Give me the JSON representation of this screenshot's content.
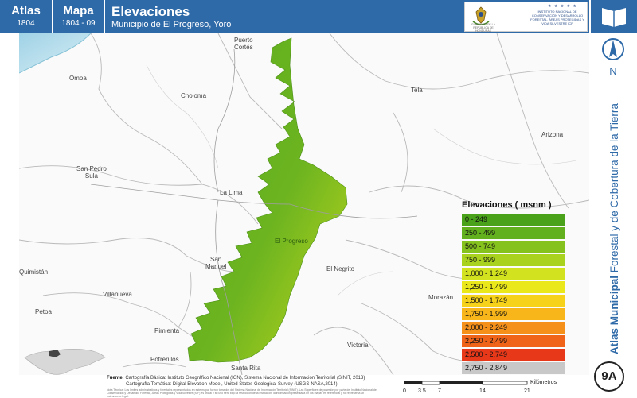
{
  "header": {
    "atlas_label": "Atlas",
    "atlas_code": "1804",
    "mapa_label": "Mapa",
    "mapa_code": "1804 - 09",
    "title": "Elevaciones",
    "subtitle": "Municipio de El Progreso, Yoro",
    "logo_gov_text": "GOBIERNO DE LA REPÚBLICA DE HONDURAS",
    "logo_inst_text": "INSTITUTO NACIONAL DE CONSERVACIÓN Y DESARROLLO FORESTAL, ÁREAS PROTEGIDAS Y VIDA SILVESTRE ICF",
    "logo_stars": "★ ★ ★ ★ ★"
  },
  "sidebar": {
    "north_label": "N",
    "vertical_bold": "Atlas Municipal",
    "vertical_rest": " Forestal y de Cobertura de la Tierra",
    "badge": "9A"
  },
  "places": [
    {
      "id": "puerto-cortes",
      "text": "Puerto\nCortés"
    },
    {
      "id": "omoa",
      "text": "Omoa"
    },
    {
      "id": "choloma",
      "text": "Choloma"
    },
    {
      "id": "tela",
      "text": "Tela"
    },
    {
      "id": "arizona",
      "text": "Arizona"
    },
    {
      "id": "san-pedro-sula",
      "text": "San Pedro\nSula"
    },
    {
      "id": "la-lima",
      "text": "La Lima"
    },
    {
      "id": "el-progreso",
      "text": "El Progreso"
    },
    {
      "id": "san-manuel",
      "text": "San\nManuel"
    },
    {
      "id": "el-negrito",
      "text": "El Negrito"
    },
    {
      "id": "quimistan",
      "text": "Quimistán"
    },
    {
      "id": "villanueva",
      "text": "Villanueva"
    },
    {
      "id": "morazan",
      "text": "Morazán"
    },
    {
      "id": "petoa",
      "text": "Petoa"
    },
    {
      "id": "pimienta",
      "text": "Pimienta"
    },
    {
      "id": "victoria",
      "text": "Victoria"
    },
    {
      "id": "potrerillos",
      "text": "Potrerillos"
    },
    {
      "id": "santa-rita",
      "text": "Santa Rita"
    }
  ],
  "legend": {
    "title": "Elevaciones ( msnm )",
    "classes": [
      {
        "label": "0 - 249",
        "color": "#4aa21a"
      },
      {
        "label": "250 - 499",
        "color": "#62b01e"
      },
      {
        "label": "500 - 749",
        "color": "#86c21e"
      },
      {
        "label": "750 - 999",
        "color": "#a8d21e"
      },
      {
        "label": "1,000 - 1,249",
        "color": "#d2e21e"
      },
      {
        "label": "1,250 - 1,499",
        "color": "#eae81a"
      },
      {
        "label": "1,500 - 1,749",
        "color": "#f6d21a"
      },
      {
        "label": "1,750 - 1,999",
        "color": "#f8b61a"
      },
      {
        "label": "2,000 - 2,249",
        "color": "#f5901a"
      },
      {
        "label": "2,250 - 2,499",
        "color": "#f0641a"
      },
      {
        "label": "2,500 - 2,749",
        "color": "#e8381a"
      },
      {
        "label": "2,750 - 2,849",
        "color": "#c8c8c8"
      }
    ]
  },
  "footer": {
    "source_label": "Fuente:",
    "source_line1": " Cartografía Básica: Instituto Geográfico Nacional (IGN), Sistema Nacional de Información Territorial (SINIT, 2013)",
    "source_line2": "Cartografía Temática: Digital Elevation Model, United States Geological Survey (USGS-NASA,2014)",
    "nota": "Nota Técnica: Los límites administrativos y forestales representados en este mapa, fueron tomados del Sistema Nacional de Información Territorial (SINIT). Las Superficies de posesión por parte del Instituto Nacional de Conservación y Desarrollo Forestal, Áreas Protegidas y Vida Silvestre (ICF) es oficial y su uso será bajo la restricción de la institución; la información presentada en los mapas es referencial y no representa un instrumento legal."
  },
  "scale": {
    "ticks": [
      "0",
      "3.5",
      "7",
      "14",
      "21"
    ],
    "unit": "Kilómetros"
  }
}
